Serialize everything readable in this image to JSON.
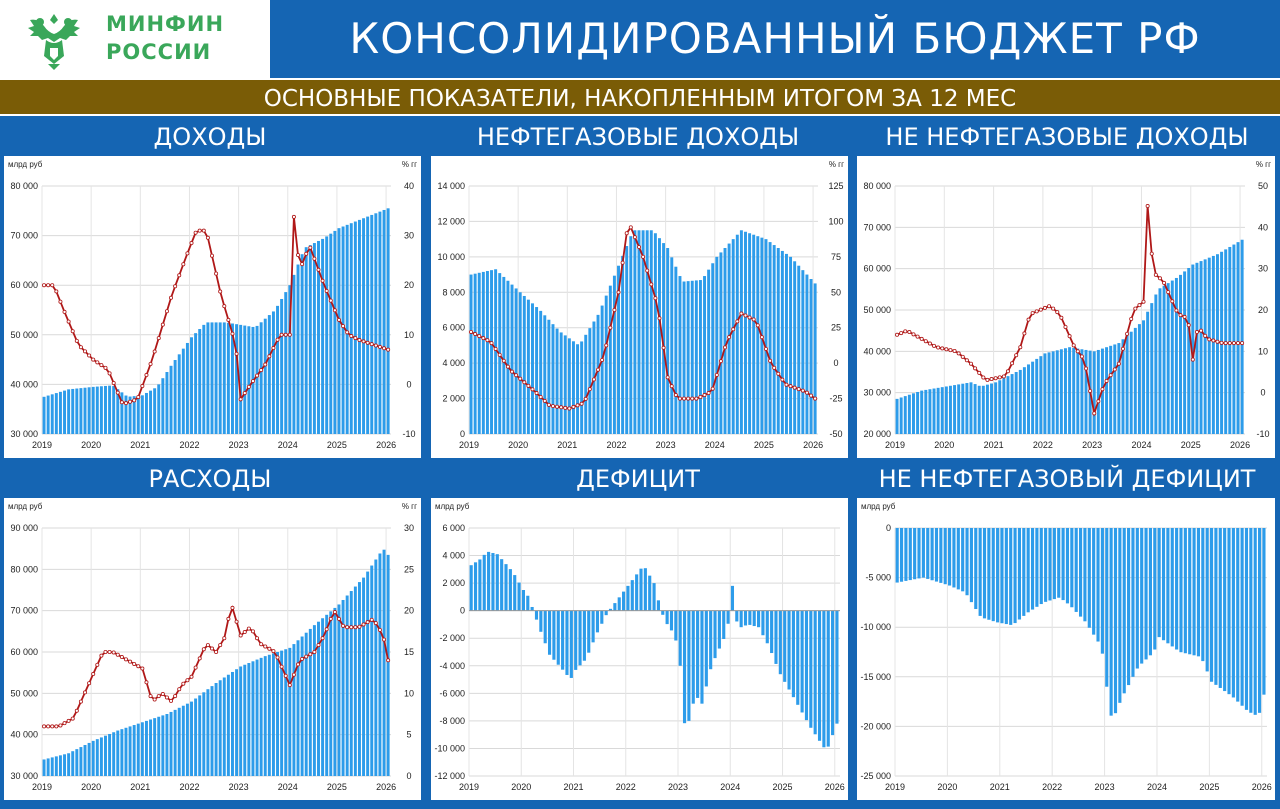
{
  "header": {
    "logo_line1": "МИНФИН",
    "logo_line2": "РОССИИ",
    "title": "КОНСОЛИДИРОВАННЫЙ БЮДЖЕТ РФ",
    "subtitle": "ОСНОВНЫЕ ПОКАЗАТЕЛИ, НАКОПЛЕННЫМ ИТОГОМ ЗА 12 МЕС"
  },
  "colors": {
    "background": "#1565b3",
    "subtitle_bar": "#7a5c06",
    "bar": "#2d9cea",
    "line": "#b01818",
    "marker_fill": "#ffffff",
    "logo_green": "#3aa75a"
  },
  "chart_data": [
    {
      "id": "revenue",
      "title": "ДОХОДЫ",
      "type": "bar",
      "unit_left": "млрд руб",
      "unit_right": "% гг",
      "ylim": [
        30000,
        80000
      ],
      "yticks": [
        30000,
        40000,
        50000,
        60000,
        70000,
        80000
      ],
      "ylim2": [
        -10,
        40
      ],
      "yticks2": [
        -10,
        0,
        10,
        20,
        30,
        40
      ],
      "x_start": 2019.0,
      "x_end": 2026.1,
      "xticks": [
        "2019",
        "2020",
        "2021",
        "2022",
        "2023",
        "2024",
        "2025",
        "2026"
      ],
      "bar_anchors": [
        [
          2019.0,
          37500
        ],
        [
          2019.5,
          39000
        ],
        [
          2020.0,
          39500
        ],
        [
          2020.4,
          39800
        ],
        [
          2020.7,
          37500
        ],
        [
          2021.0,
          37800
        ],
        [
          2021.3,
          39500
        ],
        [
          2021.6,
          44000
        ],
        [
          2022.0,
          49500
        ],
        [
          2022.3,
          52500
        ],
        [
          2022.7,
          52500
        ],
        [
          2023.0,
          52000
        ],
        [
          2023.3,
          51500
        ],
        [
          2023.7,
          55000
        ],
        [
          2024.0,
          60000
        ],
        [
          2024.3,
          67500
        ],
        [
          2024.7,
          69500
        ],
        [
          2025.0,
          71500
        ],
        [
          2025.5,
          73500
        ],
        [
          2026.0,
          75500
        ]
      ],
      "line_anchors": [
        [
          2019.0,
          20
        ],
        [
          2019.2,
          20
        ],
        [
          2019.4,
          15
        ],
        [
          2019.7,
          8
        ],
        [
          2020.0,
          5
        ],
        [
          2020.3,
          3
        ],
        [
          2020.6,
          -4
        ],
        [
          2020.9,
          -3
        ],
        [
          2021.2,
          5
        ],
        [
          2021.6,
          18
        ],
        [
          2021.9,
          26
        ],
        [
          2022.1,
          31
        ],
        [
          2022.3,
          31
        ],
        [
          2022.6,
          18
        ],
        [
          2022.9,
          8
        ],
        [
          2023.0,
          -3
        ],
        [
          2023.2,
          0
        ],
        [
          2023.5,
          4
        ],
        [
          2023.8,
          10
        ],
        [
          2024.0,
          10
        ],
        [
          2024.07,
          35
        ],
        [
          2024.2,
          23
        ],
        [
          2024.4,
          28
        ],
        [
          2024.7,
          20
        ],
        [
          2025.0,
          13
        ],
        [
          2025.2,
          10
        ],
        [
          2025.4,
          9
        ],
        [
          2025.7,
          8
        ],
        [
          2026.0,
          7
        ]
      ]
    },
    {
      "id": "oilgas_revenue",
      "title": "НЕФТЕГАЗОВЫЕ ДОХОДЫ",
      "type": "bar",
      "unit_left": "",
      "unit_right": "% гг",
      "ylim": [
        0,
        14000
      ],
      "yticks": [
        0,
        2000,
        4000,
        6000,
        8000,
        10000,
        12000,
        14000
      ],
      "ylim2": [
        -50,
        125
      ],
      "yticks2": [
        -50,
        -25,
        0,
        25,
        50,
        75,
        100,
        125
      ],
      "x_start": 2019.0,
      "x_end": 2026.1,
      "xticks": [
        "2019",
        "2020",
        "2021",
        "2022",
        "2023",
        "2024",
        "2025",
        "2026"
      ],
      "bar_anchors": [
        [
          2019.0,
          9000
        ],
        [
          2019.5,
          9300
        ],
        [
          2020.0,
          8000
        ],
        [
          2020.4,
          7000
        ],
        [
          2020.8,
          5800
        ],
        [
          2021.2,
          5000
        ],
        [
          2021.6,
          6800
        ],
        [
          2022.0,
          9500
        ],
        [
          2022.3,
          11500
        ],
        [
          2022.7,
          11500
        ],
        [
          2023.0,
          10500
        ],
        [
          2023.3,
          8600
        ],
        [
          2023.7,
          8700
        ],
        [
          2024.0,
          10000
        ],
        [
          2024.5,
          11500
        ],
        [
          2025.0,
          11000
        ],
        [
          2025.5,
          10000
        ],
        [
          2026.0,
          8500
        ]
      ],
      "line_anchors": [
        [
          2019.0,
          22
        ],
        [
          2019.4,
          15
        ],
        [
          2019.8,
          -5
        ],
        [
          2020.3,
          -20
        ],
        [
          2020.6,
          -30
        ],
        [
          2021.0,
          -32
        ],
        [
          2021.3,
          -28
        ],
        [
          2021.7,
          5
        ],
        [
          2022.0,
          50
        ],
        [
          2022.2,
          100
        ],
        [
          2022.5,
          75
        ],
        [
          2022.8,
          40
        ],
        [
          2023.0,
          -10
        ],
        [
          2023.2,
          -25
        ],
        [
          2023.6,
          -25
        ],
        [
          2023.9,
          -20
        ],
        [
          2024.2,
          15
        ],
        [
          2024.5,
          35
        ],
        [
          2024.8,
          30
        ],
        [
          2025.1,
          0
        ],
        [
          2025.4,
          -15
        ],
        [
          2025.8,
          -20
        ],
        [
          2026.0,
          -25
        ]
      ]
    },
    {
      "id": "nonoil_revenue",
      "title": "НЕ НЕФТЕГАЗОВЫЕ ДОХОДЫ",
      "type": "bar",
      "unit_left": "",
      "unit_right": "% гг",
      "ylim": [
        20000,
        80000
      ],
      "yticks": [
        20000,
        30000,
        40000,
        50000,
        60000,
        70000,
        80000
      ],
      "ylim2": [
        -10,
        50
      ],
      "yticks2": [
        -10,
        0,
        10,
        20,
        30,
        40,
        50
      ],
      "x_start": 2019.0,
      "x_end": 2026.1,
      "xticks": [
        "2019",
        "2020",
        "2021",
        "2022",
        "2023",
        "2024",
        "2025",
        "2026"
      ],
      "bar_anchors": [
        [
          2019.0,
          28500
        ],
        [
          2019.5,
          30500
        ],
        [
          2020.0,
          31500
        ],
        [
          2020.5,
          32500
        ],
        [
          2020.7,
          31500
        ],
        [
          2021.0,
          32500
        ],
        [
          2021.5,
          35500
        ],
        [
          2022.0,
          39500
        ],
        [
          2022.5,
          41000
        ],
        [
          2023.0,
          40000
        ],
        [
          2023.5,
          42000
        ],
        [
          2024.0,
          47500
        ],
        [
          2024.3,
          55000
        ],
        [
          2024.7,
          58000
        ],
        [
          2025.0,
          61000
        ],
        [
          2025.5,
          63500
        ],
        [
          2026.0,
          67000
        ]
      ],
      "line_anchors": [
        [
          2019.0,
          14
        ],
        [
          2019.2,
          15
        ],
        [
          2019.5,
          13
        ],
        [
          2019.8,
          11
        ],
        [
          2020.2,
          10
        ],
        [
          2020.5,
          7
        ],
        [
          2020.8,
          3
        ],
        [
          2021.2,
          4
        ],
        [
          2021.5,
          11
        ],
        [
          2021.7,
          19
        ],
        [
          2021.9,
          20
        ],
        [
          2022.1,
          21
        ],
        [
          2022.3,
          19
        ],
        [
          2022.6,
          11
        ],
        [
          2022.8,
          8
        ],
        [
          2023.0,
          -5
        ],
        [
          2023.2,
          2
        ],
        [
          2023.5,
          7
        ],
        [
          2023.8,
          20
        ],
        [
          2024.0,
          22
        ],
        [
          2024.07,
          47
        ],
        [
          2024.2,
          29
        ],
        [
          2024.4,
          27
        ],
        [
          2024.7,
          19
        ],
        [
          2024.9,
          18
        ],
        [
          2025.0,
          8
        ],
        [
          2025.1,
          16
        ],
        [
          2025.3,
          13
        ],
        [
          2025.6,
          12
        ],
        [
          2026.0,
          12
        ]
      ]
    },
    {
      "id": "expenditure",
      "title": "РАСХОДЫ",
      "type": "bar",
      "unit_left": "млрд руб",
      "unit_right": "% гг",
      "ylim": [
        30000,
        90000
      ],
      "yticks": [
        30000,
        40000,
        50000,
        60000,
        70000,
        80000,
        90000
      ],
      "ylim2": [
        0,
        30
      ],
      "yticks2": [
        0,
        5,
        10,
        15,
        20,
        25,
        30
      ],
      "x_start": 2019.0,
      "x_end": 2026.1,
      "xticks": [
        "2019",
        "2020",
        "2021",
        "2022",
        "2023",
        "2024",
        "2025",
        "2026"
      ],
      "bar_anchors": [
        [
          2019.0,
          34000
        ],
        [
          2019.5,
          35500
        ],
        [
          2020.0,
          38500
        ],
        [
          2020.5,
          41000
        ],
        [
          2021.0,
          43000
        ],
        [
          2021.5,
          45000
        ],
        [
          2022.0,
          48000
        ],
        [
          2022.5,
          52500
        ],
        [
          2023.0,
          56500
        ],
        [
          2023.5,
          59000
        ],
        [
          2024.0,
          61000
        ],
        [
          2024.5,
          66500
        ],
        [
          2025.0,
          71500
        ],
        [
          2025.5,
          78000
        ],
        [
          2025.9,
          85000
        ],
        [
          2026.0,
          83500
        ]
      ],
      "line_anchors": [
        [
          2019.0,
          6
        ],
        [
          2019.3,
          6
        ],
        [
          2019.6,
          7
        ],
        [
          2019.9,
          11
        ],
        [
          2020.2,
          15
        ],
        [
          2020.4,
          15
        ],
        [
          2020.7,
          14
        ],
        [
          2021.0,
          13
        ],
        [
          2021.2,
          9
        ],
        [
          2021.4,
          10
        ],
        [
          2021.6,
          9
        ],
        [
          2021.8,
          11
        ],
        [
          2022.0,
          12
        ],
        [
          2022.3,
          16
        ],
        [
          2022.5,
          15
        ],
        [
          2022.7,
          17
        ],
        [
          2022.8,
          21
        ],
        [
          2023.0,
          17
        ],
        [
          2023.2,
          18
        ],
        [
          2023.4,
          16
        ],
        [
          2023.7,
          15
        ],
        [
          2024.0,
          11
        ],
        [
          2024.2,
          14
        ],
        [
          2024.5,
          15
        ],
        [
          2024.7,
          17
        ],
        [
          2024.9,
          20
        ],
        [
          2025.1,
          18
        ],
        [
          2025.4,
          18
        ],
        [
          2025.7,
          19
        ],
        [
          2025.9,
          17
        ],
        [
          2026.0,
          14
        ]
      ]
    },
    {
      "id": "deficit",
      "title": "ДЕФИЦИТ",
      "type": "bar",
      "unit_left": "млрд  руб",
      "unit_right": "",
      "ylim": [
        -12000,
        6000
      ],
      "yticks": [
        -12000,
        -10000,
        -8000,
        -6000,
        -4000,
        -2000,
        0,
        2000,
        4000,
        6000
      ],
      "x_start": 2019.0,
      "x_end": 2026.1,
      "xticks": [
        "2019",
        "2020",
        "2021",
        "2022",
        "2023",
        "2024",
        "2025",
        "2026"
      ],
      "bar_anchors": [
        [
          2019.0,
          3300
        ],
        [
          2019.2,
          3800
        ],
        [
          2019.3,
          4300
        ],
        [
          2019.5,
          4100
        ],
        [
          2019.8,
          2800
        ],
        [
          2020.0,
          1500
        ],
        [
          2020.1,
          1000
        ],
        [
          2020.3,
          -1200
        ],
        [
          2020.5,
          -3200
        ],
        [
          2020.8,
          -4500
        ],
        [
          2020.9,
          -5000
        ],
        [
          2021.0,
          -4300
        ],
        [
          2021.2,
          -3500
        ],
        [
          2021.4,
          -1700
        ],
        [
          2021.6,
          -200
        ],
        [
          2021.8,
          800
        ],
        [
          2022.0,
          1800
        ],
        [
          2022.3,
          3300
        ],
        [
          2022.5,
          2000
        ],
        [
          2022.6,
          500
        ],
        [
          2022.7,
          -700
        ],
        [
          2022.9,
          -1800
        ],
        [
          2023.0,
          -4000
        ],
        [
          2023.1,
          -9000
        ],
        [
          2023.3,
          -6000
        ],
        [
          2023.4,
          -7000
        ],
        [
          2023.6,
          -4000
        ],
        [
          2023.9,
          -1500
        ],
        [
          2024.0,
          1800
        ],
        [
          2024.1,
          -1300
        ],
        [
          2024.3,
          -1000
        ],
        [
          2024.5,
          -1200
        ],
        [
          2024.7,
          -2600
        ],
        [
          2024.9,
          -4500
        ],
        [
          2025.2,
          -6500
        ],
        [
          2025.5,
          -8500
        ],
        [
          2025.8,
          -10200
        ],
        [
          2026.0,
          -8200
        ]
      ]
    },
    {
      "id": "nonoil_deficit",
      "title": "НЕ НЕФТЕГАЗОВЫЙ ДЕФИЦИТ",
      "type": "bar",
      "unit_left": "млрд  руб",
      "unit_right": "",
      "ylim": [
        -25000,
        0
      ],
      "yticks": [
        -25000,
        -20000,
        -15000,
        -10000,
        -5000,
        0
      ],
      "x_start": 2019.0,
      "x_end": 2026.1,
      "xticks": [
        "2019",
        "2020",
        "2021",
        "2022",
        "2023",
        "2024",
        "2025",
        "2026"
      ],
      "bar_anchors": [
        [
          2019.0,
          -5500
        ],
        [
          2019.5,
          -5000
        ],
        [
          2020.0,
          -5800
        ],
        [
          2020.3,
          -6500
        ],
        [
          2020.6,
          -9000
        ],
        [
          2020.9,
          -9500
        ],
        [
          2021.2,
          -9800
        ],
        [
          2021.5,
          -8500
        ],
        [
          2021.8,
          -7500
        ],
        [
          2022.1,
          -7000
        ],
        [
          2022.3,
          -7800
        ],
        [
          2022.6,
          -9500
        ],
        [
          2022.9,
          -12000
        ],
        [
          2023.0,
          -16000
        ],
        [
          2023.1,
          -19500
        ],
        [
          2023.3,
          -17000
        ],
        [
          2023.6,
          -14000
        ],
        [
          2023.9,
          -12500
        ],
        [
          2024.0,
          -11000
        ],
        [
          2024.4,
          -12500
        ],
        [
          2024.8,
          -13000
        ],
        [
          2025.0,
          -15500
        ],
        [
          2025.4,
          -17000
        ],
        [
          2025.7,
          -18500
        ],
        [
          2025.9,
          -19000
        ],
        [
          2026.0,
          -16800
        ]
      ]
    }
  ]
}
